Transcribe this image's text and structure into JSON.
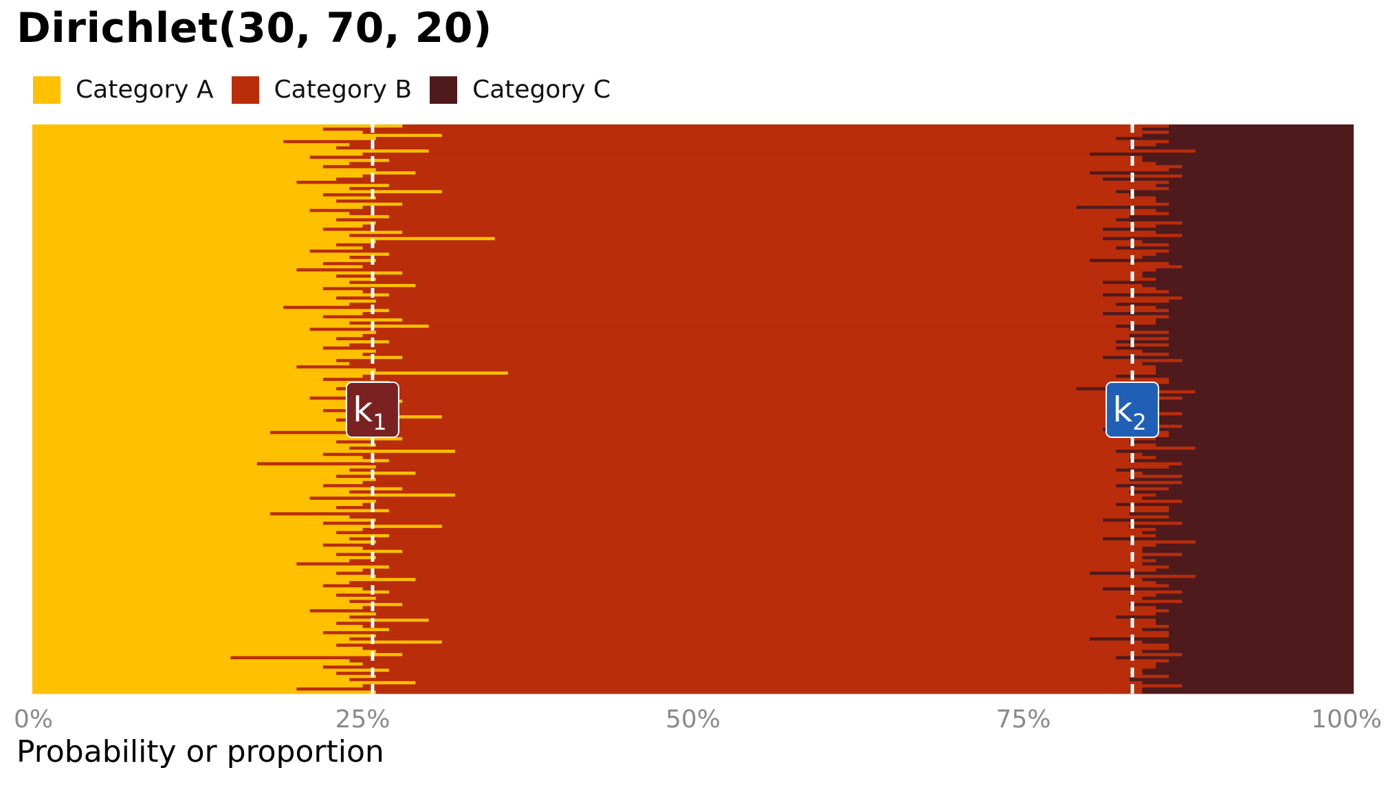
{
  "title": "Dirichlet(30, 70, 20)",
  "legend": [
    {
      "label": "Category A",
      "color": "#FFC000"
    },
    {
      "label": "Category B",
      "color": "#B92D0A"
    },
    {
      "label": "Category C",
      "color": "#4F1A1C"
    }
  ],
  "chart_data": {
    "type": "bar",
    "orientation": "horizontal-stacked",
    "title": "Dirichlet(30, 70, 20)",
    "xlabel": "Probability or proportion",
    "ylabel": "",
    "xlim": [
      0,
      1
    ],
    "x_ticks": [
      "0%",
      "25%",
      "50%",
      "75%",
      "100%"
    ],
    "x_tick_values": [
      0,
      0.25,
      0.5,
      0.75,
      1
    ],
    "grid": false,
    "legend_position": "top-left",
    "series": [
      {
        "name": "Category A",
        "color": "#FFC000"
      },
      {
        "name": "Category B",
        "color": "#B92D0A"
      },
      {
        "name": "Category C",
        "color": "#4F1A1C"
      }
    ],
    "draws": [
      [
        0.28,
        0.58
      ],
      [
        0.22,
        0.62
      ],
      [
        0.25,
        0.61
      ],
      [
        0.31,
        0.53
      ],
      [
        0.26,
        0.56
      ],
      [
        0.19,
        0.67
      ],
      [
        0.24,
        0.61
      ],
      [
        0.23,
        0.6
      ],
      [
        0.3,
        0.58
      ],
      [
        0.25,
        0.55
      ],
      [
        0.21,
        0.63
      ],
      [
        0.27,
        0.57
      ],
      [
        0.24,
        0.61
      ],
      [
        0.22,
        0.65
      ],
      [
        0.26,
        0.6
      ],
      [
        0.29,
        0.51
      ],
      [
        0.25,
        0.62
      ],
      [
        0.23,
        0.58
      ],
      [
        0.2,
        0.66
      ],
      [
        0.27,
        0.58
      ],
      [
        0.24,
        0.62
      ],
      [
        0.31,
        0.51
      ],
      [
        0.22,
        0.61
      ],
      [
        0.26,
        0.59
      ],
      [
        0.23,
        0.62
      ],
      [
        0.28,
        0.58
      ],
      [
        0.25,
        0.54
      ],
      [
        0.21,
        0.64
      ],
      [
        0.24,
        0.62
      ],
      [
        0.27,
        0.56
      ],
      [
        0.23,
        0.59
      ],
      [
        0.26,
        0.61
      ],
      [
        0.25,
        0.6
      ],
      [
        0.22,
        0.59
      ],
      [
        0.28,
        0.57
      ],
      [
        0.24,
        0.63
      ],
      [
        0.35,
        0.46
      ],
      [
        0.26,
        0.58
      ],
      [
        0.23,
        0.63
      ],
      [
        0.25,
        0.57
      ],
      [
        0.21,
        0.65
      ],
      [
        0.27,
        0.58
      ],
      [
        0.24,
        0.6
      ],
      [
        0.26,
        0.54
      ],
      [
        0.22,
        0.64
      ],
      [
        0.25,
        0.62
      ],
      [
        0.2,
        0.65
      ],
      [
        0.28,
        0.56
      ],
      [
        0.23,
        0.61
      ],
      [
        0.26,
        0.59
      ],
      [
        0.24,
        0.57
      ],
      [
        0.29,
        0.55
      ],
      [
        0.22,
        0.63
      ],
      [
        0.25,
        0.61
      ],
      [
        0.27,
        0.54
      ],
      [
        0.23,
        0.64
      ],
      [
        0.26,
        0.6
      ],
      [
        0.24,
        0.58
      ],
      [
        0.19,
        0.66
      ],
      [
        0.27,
        0.59
      ],
      [
        0.25,
        0.56
      ],
      [
        0.22,
        0.64
      ],
      [
        0.28,
        0.57
      ],
      [
        0.24,
        0.61
      ],
      [
        0.3,
        0.52
      ],
      [
        0.21,
        0.62
      ],
      [
        0.26,
        0.6
      ],
      [
        0.25,
        0.58
      ],
      [
        0.23,
        0.63
      ],
      [
        0.27,
        0.55
      ],
      [
        0.24,
        0.62
      ],
      [
        0.22,
        0.6
      ],
      [
        0.26,
        0.58
      ],
      [
        0.25,
        0.61
      ],
      [
        0.28,
        0.53
      ],
      [
        0.23,
        0.64
      ],
      [
        0.24,
        0.6
      ],
      [
        0.2,
        0.65
      ],
      [
        0.26,
        0.59
      ],
      [
        0.36,
        0.49
      ],
      [
        0.25,
        0.57
      ],
      [
        0.22,
        0.64
      ],
      [
        0.27,
        0.59
      ],
      [
        0.24,
        0.61
      ],
      [
        0.23,
        0.56
      ],
      [
        0.26,
        0.62
      ],
      [
        0.25,
        0.59
      ],
      [
        0.21,
        0.66
      ],
      [
        0.28,
        0.56
      ],
      [
        0.24,
        0.6
      ],
      [
        0.26,
        0.57
      ],
      [
        0.22,
        0.63
      ],
      [
        0.25,
        0.62
      ],
      [
        0.31,
        0.51
      ],
      [
        0.23,
        0.61
      ],
      [
        0.27,
        0.58
      ],
      [
        0.24,
        0.63
      ],
      [
        0.26,
        0.55
      ],
      [
        0.18,
        0.68
      ],
      [
        0.25,
        0.61
      ],
      [
        0.28,
        0.57
      ],
      [
        0.23,
        0.6
      ],
      [
        0.26,
        0.59
      ],
      [
        0.24,
        0.64
      ],
      [
        0.32,
        0.5
      ],
      [
        0.22,
        0.62
      ],
      [
        0.25,
        0.6
      ],
      [
        0.27,
        0.56
      ],
      [
        0.17,
        0.7
      ],
      [
        0.26,
        0.6
      ],
      [
        0.24,
        0.58
      ],
      [
        0.29,
        0.55
      ],
      [
        0.23,
        0.64
      ],
      [
        0.26,
        0.57
      ],
      [
        0.25,
        0.62
      ],
      [
        0.22,
        0.6
      ],
      [
        0.28,
        0.58
      ],
      [
        0.24,
        0.59
      ],
      [
        0.32,
        0.53
      ],
      [
        0.21,
        0.63
      ],
      [
        0.26,
        0.61
      ],
      [
        0.25,
        0.57
      ],
      [
        0.23,
        0.63
      ],
      [
        0.27,
        0.59
      ],
      [
        0.18,
        0.65
      ],
      [
        0.24,
        0.62
      ],
      [
        0.26,
        0.55
      ],
      [
        0.22,
        0.65
      ],
      [
        0.31,
        0.52
      ],
      [
        0.25,
        0.6
      ],
      [
        0.23,
        0.61
      ],
      [
        0.27,
        0.58
      ],
      [
        0.24,
        0.57
      ],
      [
        0.26,
        0.62
      ],
      [
        0.22,
        0.63
      ],
      [
        0.25,
        0.59
      ],
      [
        0.28,
        0.56
      ],
      [
        0.23,
        0.64
      ],
      [
        0.26,
        0.58
      ],
      [
        0.24,
        0.61
      ],
      [
        0.2,
        0.64
      ],
      [
        0.27,
        0.59
      ],
      [
        0.25,
        0.6
      ],
      [
        0.23,
        0.57
      ],
      [
        0.26,
        0.62
      ],
      [
        0.29,
        0.55
      ],
      [
        0.24,
        0.61
      ],
      [
        0.22,
        0.64
      ],
      [
        0.25,
        0.56
      ],
      [
        0.27,
        0.6
      ],
      [
        0.23,
        0.62
      ],
      [
        0.26,
        0.58
      ],
      [
        0.24,
        0.63
      ],
      [
        0.28,
        0.55
      ],
      [
        0.25,
        0.6
      ],
      [
        0.21,
        0.65
      ],
      [
        0.26,
        0.59
      ],
      [
        0.24,
        0.58
      ],
      [
        0.3,
        0.55
      ],
      [
        0.23,
        0.62
      ],
      [
        0.25,
        0.61
      ],
      [
        0.27,
        0.57
      ],
      [
        0.22,
        0.64
      ],
      [
        0.26,
        0.6
      ],
      [
        0.24,
        0.56
      ],
      [
        0.31,
        0.53
      ],
      [
        0.23,
        0.63
      ],
      [
        0.25,
        0.61
      ],
      [
        0.26,
        0.58
      ],
      [
        0.28,
        0.59
      ],
      [
        0.15,
        0.67
      ],
      [
        0.24,
        0.62
      ],
      [
        0.25,
        0.6
      ],
      [
        0.22,
        0.63
      ],
      [
        0.27,
        0.57
      ],
      [
        0.23,
        0.61
      ],
      [
        0.26,
        0.6
      ],
      [
        0.24,
        0.59
      ],
      [
        0.29,
        0.55
      ],
      [
        0.25,
        0.62
      ],
      [
        0.2,
        0.64
      ],
      [
        0.26,
        0.58
      ]
    ]
  },
  "annotations": [
    {
      "label_main": "k",
      "label_sub": "1",
      "x": 0.2575,
      "box_color": "#7A2222"
    },
    {
      "label_main": "k",
      "label_sub": "2",
      "x": 0.8325,
      "box_color": "#1F5FB5"
    }
  ]
}
